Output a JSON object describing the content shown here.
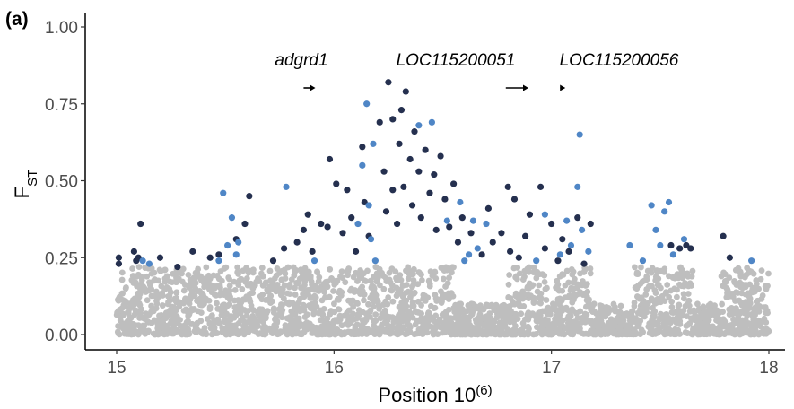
{
  "panel_label": "(a)",
  "chart_data": {
    "type": "scatter",
    "xlabel": "Position 10",
    "xlabel_superscript": "(6)",
    "ylabel": "F",
    "ylabel_subscript": "ST",
    "xlim": [
      15,
      18
    ],
    "ylim": [
      0,
      1
    ],
    "x_ticks": [
      15,
      16,
      17,
      18
    ],
    "y_ticks": [
      0.0,
      0.25,
      0.5,
      0.75,
      1.0
    ],
    "y_tick_labels": [
      "0.00",
      "0.25",
      "0.50",
      "0.75",
      "1.00"
    ],
    "grid": false,
    "legend": "none",
    "colors": {
      "background_snps": "#bebebe",
      "outlier_dark": "#25304f",
      "outlier_blue": "#4f86c6"
    },
    "threshold_approx": 0.22,
    "genes": [
      {
        "name": "adgrd1",
        "start": 15.86,
        "end": 15.91,
        "direction": "forward"
      },
      {
        "name": "LOC115200051",
        "start": 16.79,
        "end": 16.89,
        "direction": "forward"
      },
      {
        "name": "LOC115200056",
        "start": 17.04,
        "end": 17.06,
        "direction": "forward"
      }
    ],
    "series": [
      {
        "color_key": "outlier_dark",
        "points": [
          [
            15.01,
            0.25
          ],
          [
            15.01,
            0.23
          ],
          [
            15.08,
            0.27
          ],
          [
            15.09,
            0.24
          ],
          [
            15.11,
            0.36
          ],
          [
            15.1,
            0.25
          ],
          [
            15.2,
            0.25
          ],
          [
            15.28,
            0.22
          ],
          [
            15.35,
            0.27
          ],
          [
            15.43,
            0.25
          ],
          [
            15.47,
            0.26
          ],
          [
            15.55,
            0.31
          ],
          [
            15.61,
            0.45
          ],
          [
            15.59,
            0.36
          ],
          [
            15.72,
            0.24
          ],
          [
            15.77,
            0.28
          ],
          [
            15.83,
            0.3
          ],
          [
            15.86,
            0.34
          ],
          [
            15.88,
            0.39
          ],
          [
            15.9,
            0.27
          ],
          [
            15.94,
            0.36
          ],
          [
            15.98,
            0.57
          ],
          [
            15.97,
            0.35
          ],
          [
            16.01,
            0.49
          ],
          [
            16.04,
            0.33
          ],
          [
            16.06,
            0.47
          ],
          [
            16.08,
            0.38
          ],
          [
            16.1,
            0.27
          ],
          [
            16.13,
            0.61
          ],
          [
            16.14,
            0.43
          ],
          [
            16.16,
            0.32
          ],
          [
            16.21,
            0.69
          ],
          [
            16.23,
            0.53
          ],
          [
            16.24,
            0.4
          ],
          [
            16.25,
            0.82
          ],
          [
            16.27,
            0.7
          ],
          [
            16.27,
            0.47
          ],
          [
            16.29,
            0.36
          ],
          [
            16.3,
            0.62
          ],
          [
            16.31,
            0.73
          ],
          [
            16.32,
            0.48
          ],
          [
            16.33,
            0.79
          ],
          [
            16.35,
            0.57
          ],
          [
            16.36,
            0.42
          ],
          [
            16.37,
            0.66
          ],
          [
            16.39,
            0.53
          ],
          [
            16.4,
            0.38
          ],
          [
            16.42,
            0.6
          ],
          [
            16.44,
            0.46
          ],
          [
            16.46,
            0.52
          ],
          [
            16.47,
            0.34
          ],
          [
            16.49,
            0.58
          ],
          [
            16.51,
            0.44
          ],
          [
            16.53,
            0.35
          ],
          [
            16.55,
            0.49
          ],
          [
            16.57,
            0.3
          ],
          [
            16.59,
            0.38
          ],
          [
            16.63,
            0.33
          ],
          [
            16.68,
            0.26
          ],
          [
            16.71,
            0.41
          ],
          [
            16.73,
            0.3
          ],
          [
            16.77,
            0.33
          ],
          [
            16.8,
            0.48
          ],
          [
            16.81,
            0.27
          ],
          [
            16.83,
            0.44
          ],
          [
            16.85,
            0.25
          ],
          [
            16.88,
            0.32
          ],
          [
            16.9,
            0.39
          ],
          [
            16.95,
            0.48
          ],
          [
            16.97,
            0.28
          ],
          [
            17.0,
            0.36
          ],
          [
            17.03,
            0.24
          ],
          [
            17.05,
            0.31
          ],
          [
            17.08,
            0.27
          ],
          [
            17.12,
            0.38
          ],
          [
            17.15,
            0.23
          ],
          [
            17.18,
            0.36
          ],
          [
            17.55,
            0.29
          ],
          [
            17.59,
            0.28
          ],
          [
            17.62,
            0.29
          ],
          [
            17.64,
            0.28
          ],
          [
            17.79,
            0.32
          ],
          [
            17.82,
            0.25
          ]
        ]
      },
      {
        "color_key": "outlier_blue",
        "points": [
          [
            15.12,
            0.24
          ],
          [
            15.15,
            0.23
          ],
          [
            15.47,
            0.24
          ],
          [
            15.49,
            0.46
          ],
          [
            15.51,
            0.29
          ],
          [
            15.53,
            0.38
          ],
          [
            15.55,
            0.26
          ],
          [
            15.56,
            0.3
          ],
          [
            15.78,
            0.48
          ],
          [
            15.91,
            0.24
          ],
          [
            16.11,
            0.36
          ],
          [
            16.13,
            0.55
          ],
          [
            16.15,
            0.75
          ],
          [
            16.16,
            0.42
          ],
          [
            16.17,
            0.31
          ],
          [
            16.18,
            0.62
          ],
          [
            16.19,
            0.24
          ],
          [
            16.39,
            0.68
          ],
          [
            16.45,
            0.69
          ],
          [
            16.52,
            0.37
          ],
          [
            16.58,
            0.43
          ],
          [
            16.6,
            0.24
          ],
          [
            16.62,
            0.26
          ],
          [
            16.64,
            0.37
          ],
          [
            16.66,
            0.28
          ],
          [
            16.7,
            0.36
          ],
          [
            16.93,
            0.24
          ],
          [
            16.97,
            0.39
          ],
          [
            17.04,
            0.26
          ],
          [
            17.07,
            0.37
          ],
          [
            17.09,
            0.29
          ],
          [
            17.12,
            0.48
          ],
          [
            17.13,
            0.65
          ],
          [
            17.14,
            0.34
          ],
          [
            17.17,
            0.27
          ],
          [
            17.36,
            0.29
          ],
          [
            17.42,
            0.24
          ],
          [
            17.46,
            0.42
          ],
          [
            17.48,
            0.34
          ],
          [
            17.5,
            0.29
          ],
          [
            17.52,
            0.4
          ],
          [
            17.54,
            0.43
          ],
          [
            17.56,
            0.26
          ],
          [
            17.61,
            0.31
          ],
          [
            17.92,
            0.24
          ]
        ]
      }
    ]
  }
}
